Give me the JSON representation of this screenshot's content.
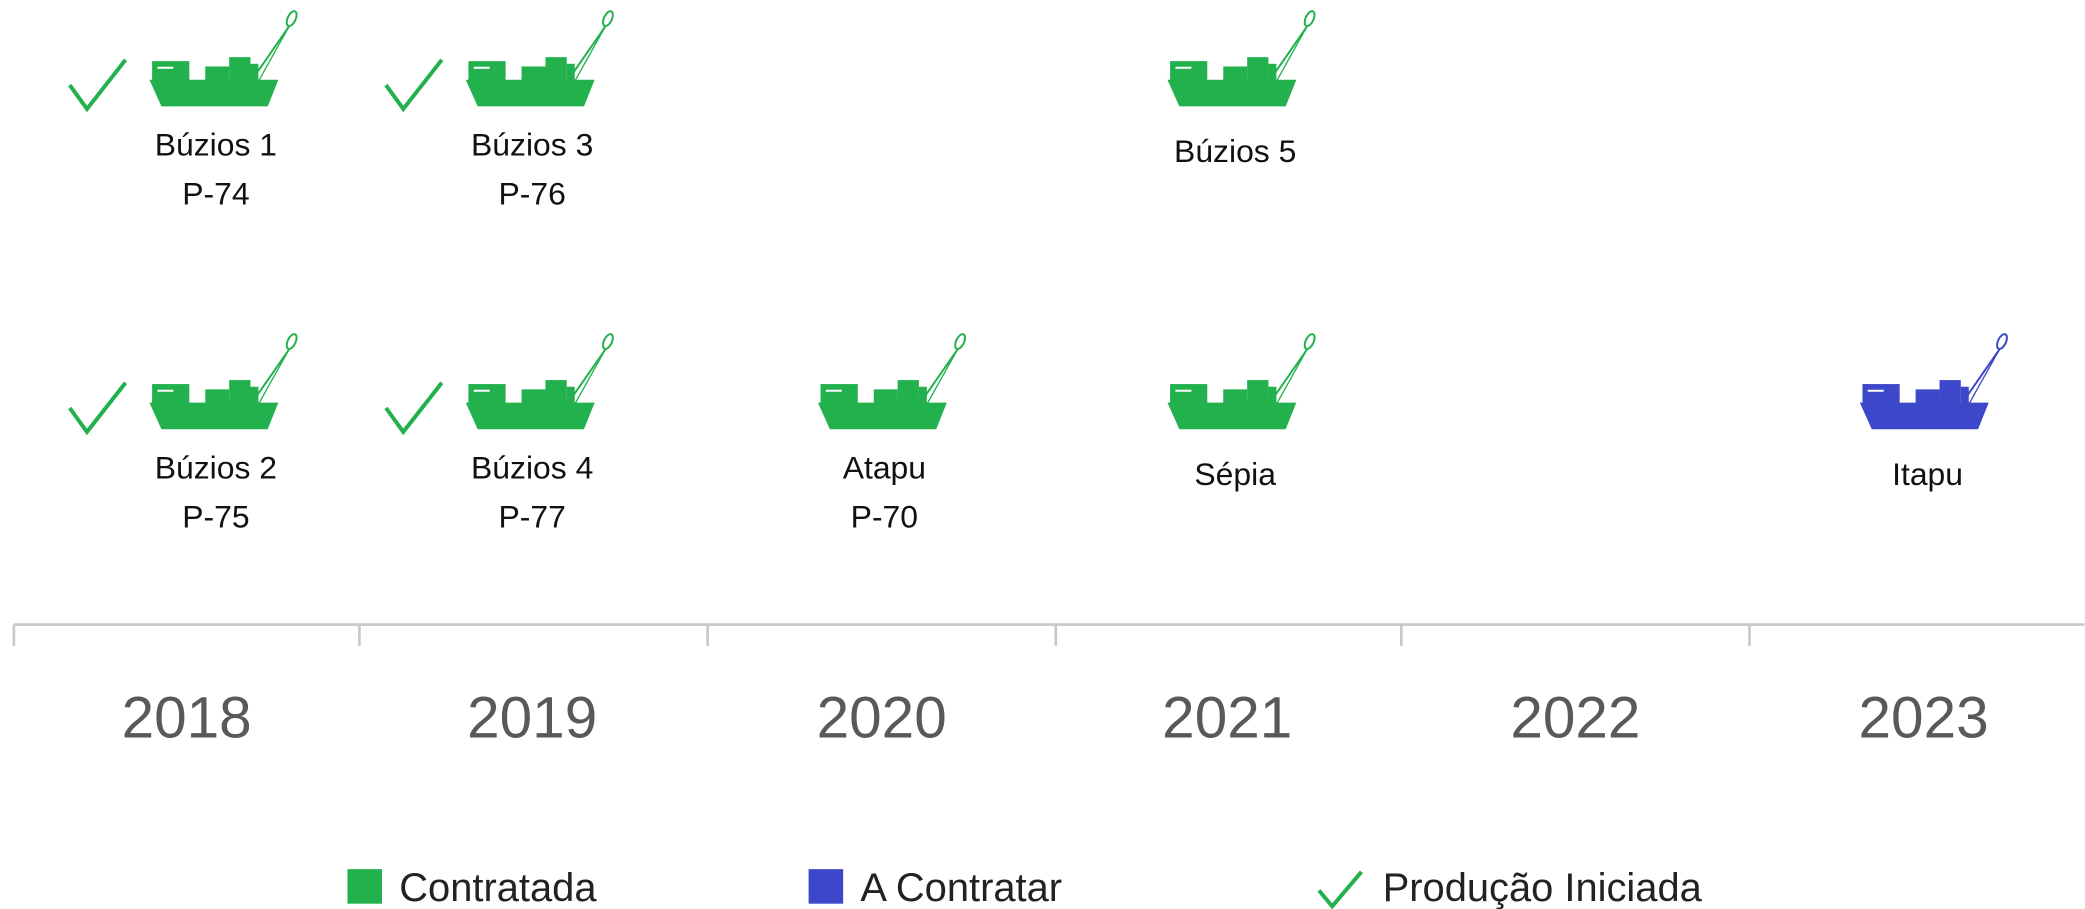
{
  "timeline": {
    "years": [
      "2018",
      "2019",
      "2020",
      "2021",
      "2022",
      "2023"
    ],
    "rows": [
      [
        {
          "lines": [
            "Búzios 1",
            "P-74"
          ],
          "color": "#22b14c",
          "started": true
        },
        {
          "lines": [
            "Búzios 3",
            "P-76"
          ],
          "color": "#22b14c",
          "started": true
        },
        null,
        {
          "lines": [
            "Búzios 5"
          ],
          "color": "#22b14c",
          "started": false
        },
        null,
        null
      ],
      [
        {
          "lines": [
            "Búzios 2",
            "P-75"
          ],
          "color": "#22b14c",
          "started": true
        },
        {
          "lines": [
            "Búzios 4",
            "P-77"
          ],
          "color": "#22b14c",
          "started": true
        },
        {
          "lines": [
            "Atapu",
            "P-70"
          ],
          "color": "#22b14c",
          "started": false
        },
        {
          "lines": [
            "Sépia"
          ],
          "color": "#22b14c",
          "started": false
        },
        null,
        {
          "lines": [
            "Itapu"
          ],
          "color": "#3d47c9",
          "started": false
        }
      ]
    ]
  },
  "legend": [
    {
      "label": "Contratada",
      "color": "#22b14c"
    },
    {
      "label": "A Contratar",
      "color": "#3d47c9"
    },
    {
      "label": "Produção Iniciada",
      "symbol": "check",
      "color": "#22b14c"
    }
  ]
}
